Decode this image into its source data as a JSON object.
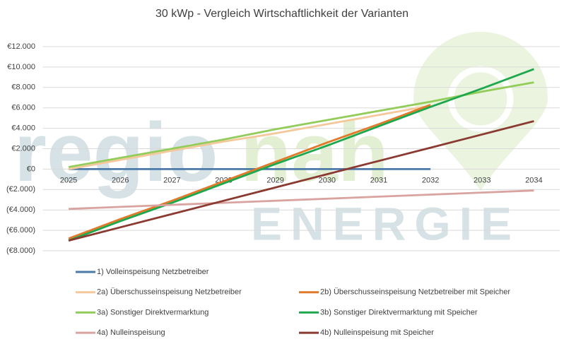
{
  "chart_data": {
    "type": "line",
    "title": "30 kWp - Vergleich Wirtschaftlichkeit der Varianten",
    "watermark": {
      "part1": "regio",
      "part2": "nah",
      "part3": "ENERGIE"
    },
    "categories": [
      "2025",
      "2026",
      "2027",
      "2028",
      "2029",
      "2030",
      "2031",
      "2032",
      "2033",
      "2034"
    ],
    "ylim": [
      -8000,
      12000
    ],
    "yticks": [
      {
        "value": -8000,
        "label": "(€8.000)"
      },
      {
        "value": -6000,
        "label": "(€6.000)"
      },
      {
        "value": -4000,
        "label": "(€4.000)"
      },
      {
        "value": -2000,
        "label": "(€2.000)"
      },
      {
        "value": 0,
        "label": "€0"
      },
      {
        "value": 2000,
        "label": "€2.000"
      },
      {
        "value": 4000,
        "label": "€4.000"
      },
      {
        "value": 6000,
        "label": "€6.000"
      },
      {
        "value": 8000,
        "label": "€8.000"
      },
      {
        "value": 10000,
        "label": "€10.000"
      },
      {
        "value": 12000,
        "label": "€12.000"
      }
    ],
    "grid": true,
    "series": [
      {
        "name": "1) Volleinspeisung Netzbetreiber",
        "color": "#4a7aa8",
        "values": [
          0,
          0,
          0,
          0,
          0,
          0,
          0,
          0,
          null,
          null
        ]
      },
      {
        "name": "2a) Überschusseinspeisung Netzbetreiber",
        "color": "#f4c89a",
        "values": [
          0,
          900,
          1800,
          2700,
          3500,
          4400,
          5300,
          6200,
          null,
          null
        ]
      },
      {
        "name": "2b) Überschusseinspeisung Netzbetreiber mit Speicher",
        "color": "#e07a2a",
        "values": [
          -6800,
          -4900,
          -3100,
          -1200,
          700,
          2600,
          4400,
          6300,
          null,
          null
        ]
      },
      {
        "name": "3a) Sonstiger Direktvermarktung",
        "color": "#92cc5a",
        "values": [
          200,
          1100,
          2000,
          2900,
          3900,
          4800,
          5700,
          6600,
          7600,
          8500
        ]
      },
      {
        "name": "3b) Sonstiger Direktvermarktung mit Speicher",
        "color": "#1ea84e",
        "values": [
          -7000,
          -5100,
          -3300,
          -1400,
          500,
          2300,
          4200,
          6100,
          7900,
          9800
        ]
      },
      {
        "name": "4a) Nulleinspeisung",
        "color": "#d9a3a0",
        "values": [
          -3900,
          -3700,
          -3500,
          -3300,
          -3100,
          -2900,
          -2700,
          -2500,
          -2300,
          -2100
        ]
      },
      {
        "name": "4b) Nulleinspeisung mit Speicher",
        "color": "#8b3a32",
        "values": [
          -7000,
          -5700,
          -4400,
          -3100,
          -1800,
          -500,
          800,
          2100,
          3400,
          4700
        ]
      }
    ]
  }
}
